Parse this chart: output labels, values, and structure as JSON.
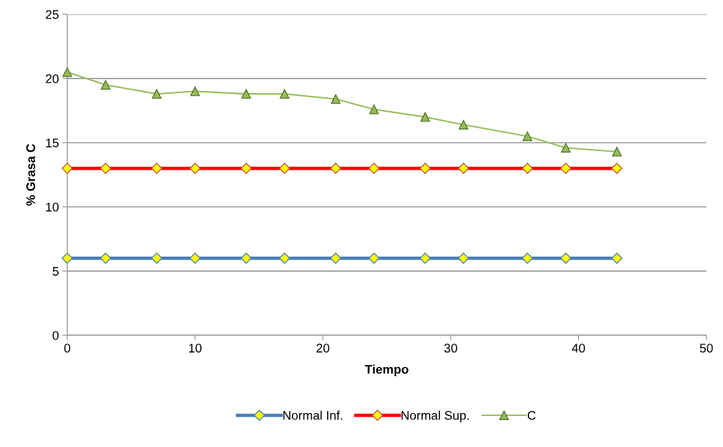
{
  "chart_data": {
    "type": "line",
    "xlabel": "Tiempo",
    "ylabel": "% Grasa C",
    "x": [
      0,
      3,
      7,
      10,
      14,
      17,
      21,
      24,
      28,
      31,
      36,
      39,
      43
    ],
    "series": [
      {
        "name": "Normal Inf.",
        "color": "#4a7ebb",
        "marker": "diamond",
        "values": [
          6,
          6,
          6,
          6,
          6,
          6,
          6,
          6,
          6,
          6,
          6,
          6,
          6
        ]
      },
      {
        "name": "Normal Sup.",
        "color": "#ff0000",
        "marker": "diamond",
        "values": [
          13,
          13,
          13,
          13,
          13,
          13,
          13,
          13,
          13,
          13,
          13,
          13,
          13
        ]
      },
      {
        "name": "C",
        "color": "#9bbb59",
        "marker": "triangle",
        "values": [
          20.5,
          19.5,
          18.8,
          19.0,
          18.8,
          18.8,
          18.4,
          17.6,
          17.0,
          16.4,
          15.5,
          14.6,
          14.3
        ]
      }
    ],
    "xlim": [
      0,
      50
    ],
    "xticks": [
      0,
      10,
      20,
      30,
      40,
      50
    ],
    "ylim": [
      0,
      25
    ],
    "yticks": [
      0,
      5,
      10,
      15,
      20,
      25
    ],
    "grid": "y",
    "legend": "bottom"
  }
}
